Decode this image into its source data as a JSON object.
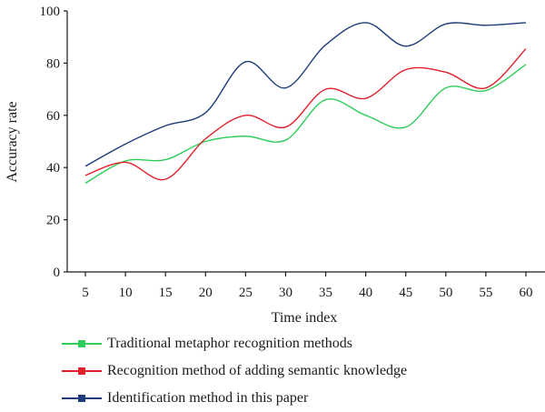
{
  "chart_data": {
    "type": "line",
    "xlabel": "Time index",
    "ylabel": "Accuracy rate",
    "x": [
      5,
      10,
      15,
      20,
      25,
      30,
      35,
      40,
      45,
      50,
      55,
      60
    ],
    "ylim": [
      0,
      100
    ],
    "yticks": [
      0,
      20,
      40,
      60,
      80,
      100
    ],
    "grid": false,
    "legend_position": "bottom",
    "series": [
      {
        "name": "Traditional metaphor recognition methods",
        "color": "#2ecc5a",
        "values": [
          34,
          42.5,
          43,
          50,
          52,
          50.5,
          66,
          60,
          55.5,
          70.5,
          69.5,
          79.5
        ]
      },
      {
        "name": "Recognition method of adding semantic knowledge",
        "color": "#e0202a",
        "values": [
          37,
          42,
          35.5,
          51,
          60,
          55.5,
          70,
          66.5,
          77.5,
          76.5,
          70.5,
          85.5
        ]
      },
      {
        "name": "Identification method in this paper",
        "color": "#1f3b7a",
        "values": [
          40.5,
          49,
          56,
          61,
          80.5,
          70.5,
          87,
          95.5,
          86.5,
          95,
          94.5,
          95.5
        ]
      }
    ]
  }
}
